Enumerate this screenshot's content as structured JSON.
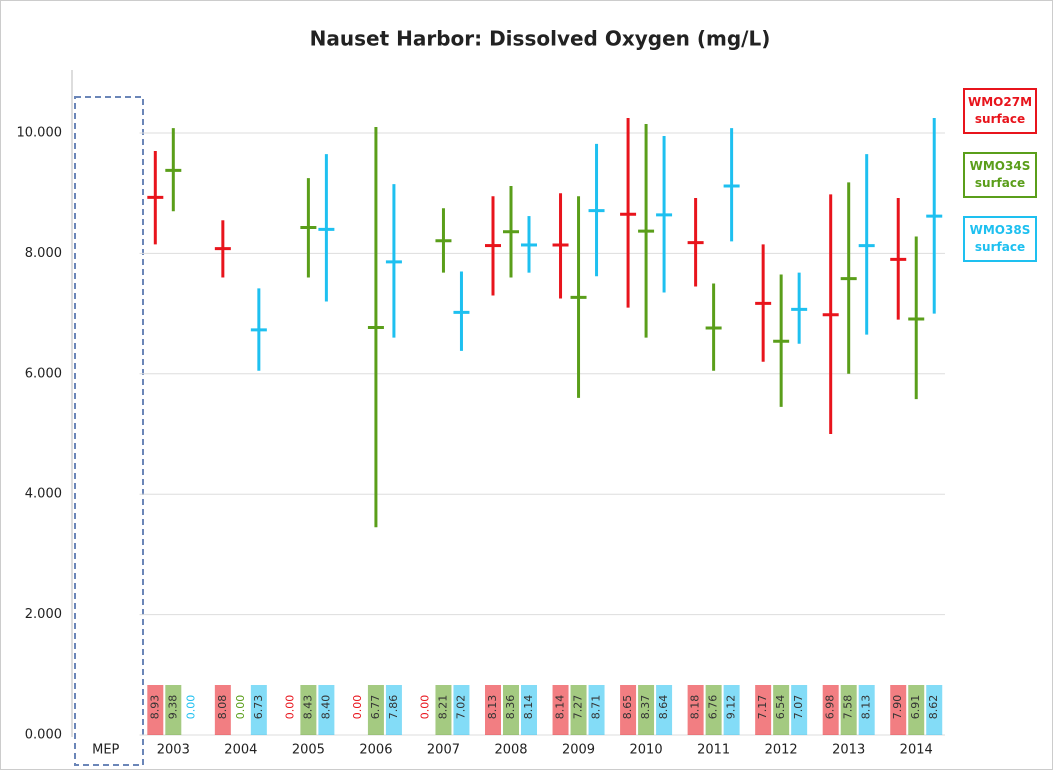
{
  "chart_data": {
    "type": "errorbar",
    "title": "Nauset Harbor: Dissolved Oxygen (mg/L)",
    "categories": [
      "MEP",
      "2003",
      "2004",
      "2005",
      "2006",
      "2007",
      "2008",
      "2009",
      "2010",
      "2011",
      "2012",
      "2013",
      "2014"
    ],
    "ylim": [
      0,
      11
    ],
    "yticks": [
      {
        "value": 0,
        "label": "0.000"
      },
      {
        "value": 2,
        "label": "2.000"
      },
      {
        "value": 4,
        "label": "4.000"
      },
      {
        "value": 6,
        "label": "6.000"
      },
      {
        "value": 8,
        "label": "8.000"
      },
      {
        "value": 10,
        "label": "10.000"
      }
    ],
    "grid": true,
    "series": [
      {
        "name": "WMO27M surface",
        "color": "#e8141c",
        "values": [
          null,
          8.93,
          8.08,
          0,
          0,
          0,
          8.13,
          8.14,
          8.65,
          8.18,
          7.17,
          6.98,
          7.9
        ],
        "value_labels": [
          null,
          "8.93",
          "8.08",
          "0.00",
          "0.00",
          "0.00",
          "8.13",
          "8.14",
          "8.65",
          "8.18",
          "7.17",
          "6.98",
          "7.90"
        ],
        "min": [
          null,
          8.15,
          7.6,
          null,
          null,
          null,
          7.3,
          7.25,
          7.1,
          7.45,
          6.2,
          5.0,
          6.9
        ],
        "max": [
          null,
          9.7,
          8.55,
          null,
          null,
          null,
          8.95,
          9.0,
          10.25,
          8.92,
          8.15,
          8.98,
          8.92
        ]
      },
      {
        "name": "WMO34S surface",
        "color": "#5a9e1a",
        "values": [
          null,
          9.38,
          0,
          8.43,
          6.77,
          8.21,
          8.36,
          7.27,
          8.37,
          6.76,
          6.54,
          7.58,
          6.91
        ],
        "value_labels": [
          null,
          "9.38",
          "0.00",
          "8.43",
          "6.77",
          "8.21",
          "8.36",
          "7.27",
          "8.37",
          "6.76",
          "6.54",
          "7.58",
          "6.91"
        ],
        "min": [
          null,
          8.7,
          null,
          7.6,
          3.45,
          7.68,
          7.6,
          5.6,
          6.6,
          6.05,
          5.45,
          6.0,
          5.58
        ],
        "max": [
          null,
          10.08,
          null,
          9.25,
          10.1,
          8.75,
          9.12,
          8.95,
          10.15,
          7.5,
          7.65,
          9.18,
          8.28
        ]
      },
      {
        "name": "WMO38S surface",
        "color": "#1ec0f0",
        "values": [
          null,
          0,
          6.73,
          8.4,
          7.86,
          7.02,
          8.14,
          8.71,
          8.64,
          9.12,
          7.07,
          8.13,
          8.62
        ],
        "value_labels": [
          null,
          "0.00",
          "6.73",
          "8.40",
          "7.86",
          "7.02",
          "8.14",
          "8.71",
          "8.64",
          "9.12",
          "7.07",
          "8.13",
          "8.62"
        ],
        "min": [
          null,
          null,
          6.05,
          7.2,
          6.6,
          6.38,
          7.68,
          7.62,
          7.35,
          8.2,
          6.5,
          6.65,
          7.0
        ],
        "max": [
          null,
          null,
          7.42,
          9.65,
          9.15,
          7.7,
          8.62,
          9.82,
          9.95,
          10.08,
          7.68,
          9.65,
          10.25
        ]
      }
    ]
  }
}
